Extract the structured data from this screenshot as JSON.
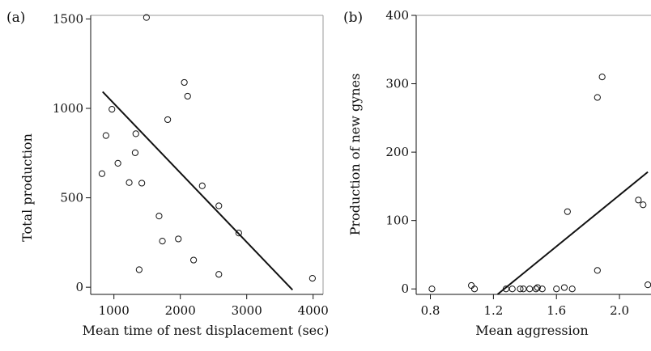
{
  "chart_data": [
    {
      "panel_label": "(a)",
      "type": "scatter",
      "xlabel": "Mean time of nest displacement (sec)",
      "ylabel": "Total production",
      "xlim": [
        650,
        4150
      ],
      "ylim": [
        -40,
        1520
      ],
      "xticks": [
        1000,
        2000,
        3000,
        4000
      ],
      "yticks": [
        0,
        500,
        1000,
        1500
      ],
      "grid": false,
      "series": [
        {
          "x": [
            820,
            880,
            970,
            1060,
            1230,
            1320,
            1330,
            1380,
            1420,
            1490,
            1680,
            1730,
            1810,
            1970,
            2060,
            2110,
            2200,
            2330,
            2580,
            2580,
            2880,
            3990
          ],
          "y": [
            635,
            848,
            995,
            693,
            585,
            752,
            858,
            98,
            582,
            1508,
            398,
            258,
            937,
            270,
            1145,
            1068,
            152,
            567,
            455,
            72,
            303,
            50
          ]
        }
      ],
      "fit_line": {
        "x": [
          830,
          3690
        ],
        "y": [
          1093,
          -15
        ]
      }
    },
    {
      "panel_label": "(b)",
      "type": "scatter",
      "xlabel": "Mean aggression",
      "ylabel": "Production of new gynes",
      "xlim": [
        0.71,
        2.2
      ],
      "ylim": [
        -8,
        400
      ],
      "xticks": [
        "0.8",
        "1.2",
        "1.6",
        "2.0"
      ],
      "yticks": [
        0,
        100,
        200,
        300,
        400
      ],
      "grid": false,
      "series": [
        {
          "x": [
            0.81,
            1.06,
            1.08,
            1.28,
            1.32,
            1.37,
            1.39,
            1.43,
            1.47,
            1.48,
            1.51,
            1.6,
            1.65,
            1.67,
            1.7,
            1.86,
            1.86,
            1.89,
            2.12,
            2.15,
            2.18
          ],
          "y": [
            0,
            5,
            0,
            0,
            0,
            0,
            0,
            0,
            0,
            2,
            0,
            0,
            2,
            113,
            0,
            280,
            27,
            310,
            130,
            123,
            6
          ]
        }
      ],
      "fit_line": {
        "x": [
          1.226,
          2.18
        ],
        "y": [
          -8,
          171
        ]
      }
    }
  ]
}
